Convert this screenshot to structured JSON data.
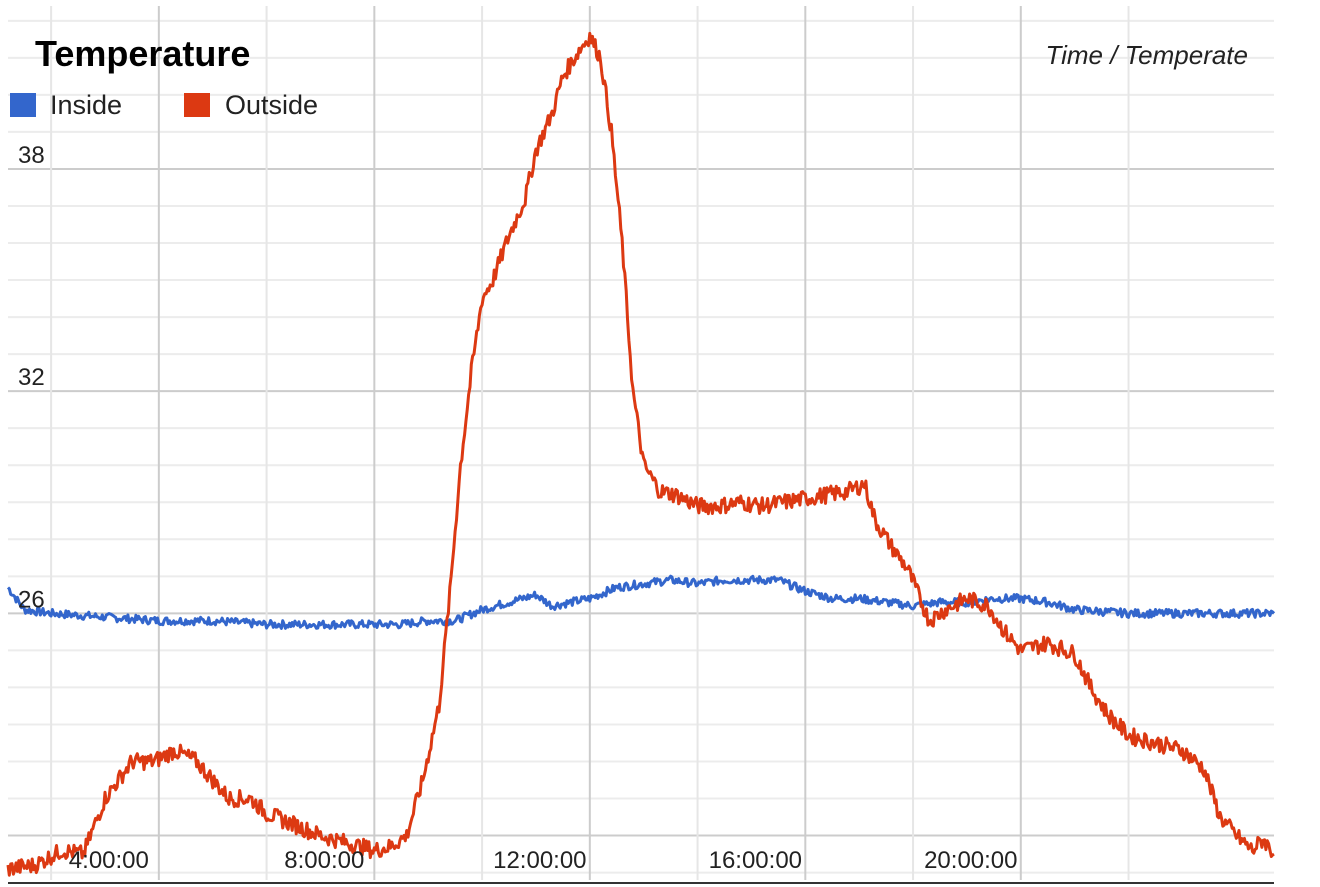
{
  "chart_data": {
    "type": "line",
    "title": "Temperature",
    "subtitle": "Time / Temperate",
    "x_unit": "hours",
    "xlim": [
      1.2,
      24.7
    ],
    "ylim": [
      18.8,
      42.4
    ],
    "x_ticks": [
      {
        "value": 4,
        "label": "4:00:00"
      },
      {
        "value": 8,
        "label": "8:00:00"
      },
      {
        "value": 12,
        "label": "12:00:00"
      },
      {
        "value": 16,
        "label": "16:00:00"
      },
      {
        "value": 20,
        "label": "20:00:00"
      }
    ],
    "y_ticks": [
      {
        "value": 26,
        "label": "26"
      },
      {
        "value": 32,
        "label": "32"
      },
      {
        "value": 38,
        "label": "38"
      }
    ],
    "legend": {
      "position": "top-left"
    },
    "grid": true,
    "series": [
      {
        "name": "Inside",
        "color": "#3366cc",
        "points": [
          [
            1.2,
            26.7
          ],
          [
            1.5,
            26.1
          ],
          [
            2,
            26.0
          ],
          [
            3,
            25.9
          ],
          [
            4,
            25.8
          ],
          [
            5,
            25.8
          ],
          [
            6,
            25.7
          ],
          [
            7,
            25.7
          ],
          [
            8,
            25.7
          ],
          [
            8.5,
            25.7
          ],
          [
            9,
            25.8
          ],
          [
            9.5,
            25.8
          ],
          [
            10,
            26.1
          ],
          [
            10.5,
            26.3
          ],
          [
            11,
            26.5
          ],
          [
            11.3,
            26.2
          ],
          [
            12,
            26.4
          ],
          [
            12.5,
            26.7
          ],
          [
            13,
            26.8
          ],
          [
            13.5,
            26.9
          ],
          [
            14,
            26.8
          ],
          [
            14.5,
            26.9
          ],
          [
            15,
            26.9
          ],
          [
            15.5,
            26.9
          ],
          [
            16,
            26.6
          ],
          [
            16.5,
            26.4
          ],
          [
            17,
            26.4
          ],
          [
            17.5,
            26.3
          ],
          [
            18,
            26.2
          ],
          [
            18.5,
            26.3
          ],
          [
            19,
            26.3
          ],
          [
            19.5,
            26.4
          ],
          [
            20,
            26.4
          ],
          [
            20.5,
            26.3
          ],
          [
            21,
            26.1
          ],
          [
            22,
            26.0
          ],
          [
            23,
            26.0
          ],
          [
            24,
            26.0
          ],
          [
            24.7,
            26.0
          ]
        ]
      },
      {
        "name": "Outside",
        "color": "#dc3912",
        "points": [
          [
            1.2,
            19.1
          ],
          [
            1.7,
            19.2
          ],
          [
            2.2,
            19.6
          ],
          [
            2.6,
            19.5
          ],
          [
            3,
            21.0
          ],
          [
            3.5,
            22.0
          ],
          [
            3.9,
            22.0
          ],
          [
            4.3,
            22.3
          ],
          [
            4.7,
            22.0
          ],
          [
            5,
            21.5
          ],
          [
            5.3,
            21.0
          ],
          [
            5.7,
            21.0
          ],
          [
            6,
            20.6
          ],
          [
            6.5,
            20.3
          ],
          [
            7,
            20.0
          ],
          [
            7.5,
            19.8
          ],
          [
            8,
            19.6
          ],
          [
            8.3,
            19.7
          ],
          [
            8.6,
            20.0
          ],
          [
            8.9,
            21.5
          ],
          [
            9.2,
            23.5
          ],
          [
            9.4,
            26.5
          ],
          [
            9.6,
            30.0
          ],
          [
            9.8,
            32.5
          ],
          [
            10,
            34.5
          ],
          [
            10.2,
            35.0
          ],
          [
            10.5,
            36.2
          ],
          [
            10.8,
            37.2
          ],
          [
            11,
            38.5
          ],
          [
            11.3,
            39.5
          ],
          [
            11.5,
            40.5
          ],
          [
            11.8,
            41.2
          ],
          [
            12,
            41.6
          ],
          [
            12.2,
            41.0
          ],
          [
            12.4,
            39.0
          ],
          [
            12.6,
            36.0
          ],
          [
            12.8,
            32.0
          ],
          [
            13,
            30.0
          ],
          [
            13.3,
            29.3
          ],
          [
            13.6,
            29.2
          ],
          [
            14,
            28.9
          ],
          [
            14.4,
            28.9
          ],
          [
            14.8,
            29.0
          ],
          [
            15.2,
            28.9
          ],
          [
            15.6,
            29.0
          ],
          [
            16,
            29.1
          ],
          [
            16.4,
            29.2
          ],
          [
            16.8,
            29.3
          ],
          [
            17.1,
            29.5
          ],
          [
            17.3,
            28.5
          ],
          [
            17.6,
            27.8
          ],
          [
            17.9,
            27.2
          ],
          [
            18.1,
            26.5
          ],
          [
            18.3,
            25.8
          ],
          [
            18.6,
            26.1
          ],
          [
            19,
            26.4
          ],
          [
            19.4,
            26.2
          ],
          [
            19.7,
            25.5
          ],
          [
            20,
            25.0
          ],
          [
            20.5,
            25.2
          ],
          [
            21,
            24.9
          ],
          [
            21.3,
            24.0
          ],
          [
            21.6,
            23.3
          ],
          [
            22,
            22.7
          ],
          [
            22.5,
            22.5
          ],
          [
            23,
            22.3
          ],
          [
            23.4,
            21.8
          ],
          [
            23.7,
            20.5
          ],
          [
            24,
            20.0
          ],
          [
            24.3,
            19.6
          ],
          [
            24.5,
            19.9
          ],
          [
            24.7,
            19.5
          ]
        ]
      }
    ]
  }
}
